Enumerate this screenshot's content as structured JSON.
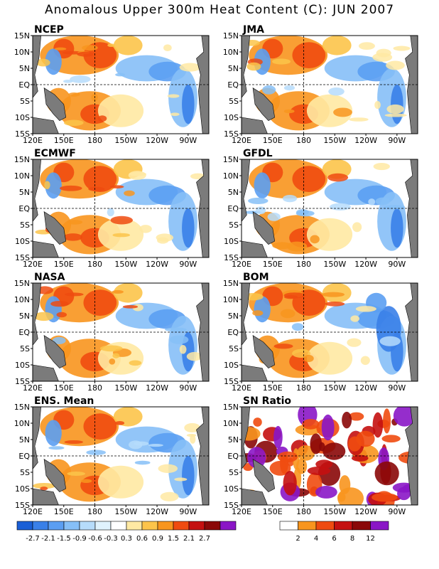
{
  "title": "Anomalous Upper 300m Heat Content (C): JUN 2007",
  "lat_labels": [
    "15N",
    "10N",
    "5N",
    "EQ",
    "5S",
    "10S",
    "15S"
  ],
  "lon_labels": [
    "120E",
    "150E",
    "180",
    "150W",
    "120W",
    "90W"
  ],
  "panels": [
    {
      "name": "NCEP"
    },
    {
      "name": "JMA"
    },
    {
      "name": "ECMWF"
    },
    {
      "name": "GFDL"
    },
    {
      "name": "NASA"
    },
    {
      "name": "BOM"
    },
    {
      "name": "ENS. Mean"
    },
    {
      "name": "SN Ratio"
    }
  ],
  "anomaly_colorbar": {
    "colors": [
      "#1a5fd6",
      "#3a80e8",
      "#5b9ef2",
      "#86bff7",
      "#b6dcfb",
      "#dff2fd",
      "#ffffff",
      "#ffe9a3",
      "#fcc44a",
      "#f8951e",
      "#ef4b10",
      "#c41010",
      "#8a0808",
      "#8a16c6"
    ],
    "labels": [
      "-2.7",
      "-2.1",
      "-1.5",
      "-0.9",
      "-0.6",
      "-0.3",
      "0.3",
      "0.6",
      "0.9",
      "1.5",
      "2.1",
      "2.7"
    ]
  },
  "sn_colorbar": {
    "colors": [
      "#ffffff",
      "#f8951e",
      "#ef4b10",
      "#c41010",
      "#8a0808",
      "#8a16c6"
    ],
    "labels": [
      "2",
      "4",
      "6",
      "8",
      "12"
    ]
  }
}
